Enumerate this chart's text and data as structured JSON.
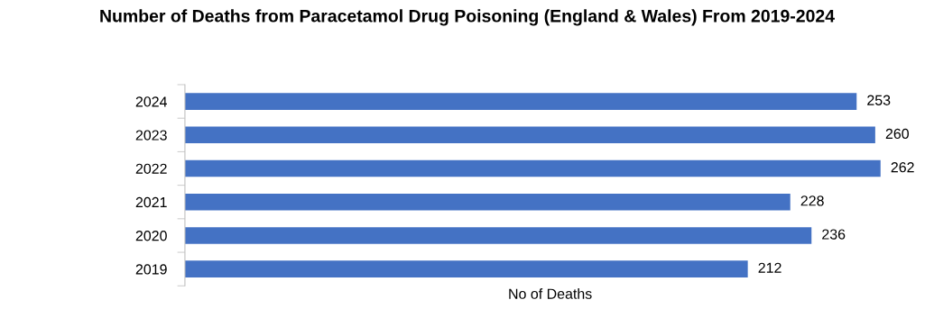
{
  "chart_data": {
    "type": "bar",
    "orientation": "horizontal",
    "title": "Number of Deaths from Paracetamol Drug Poisoning (England & Wales) From 2019-2024",
    "xlabel": "No of Deaths",
    "categories": [
      "2024",
      "2023",
      "2022",
      "2021",
      "2020",
      "2019"
    ],
    "values": [
      253,
      260,
      262,
      228,
      236,
      212
    ],
    "color": "#4472c4",
    "data_labels": true,
    "tick_labels": "y",
    "grid": false,
    "legend": false
  }
}
